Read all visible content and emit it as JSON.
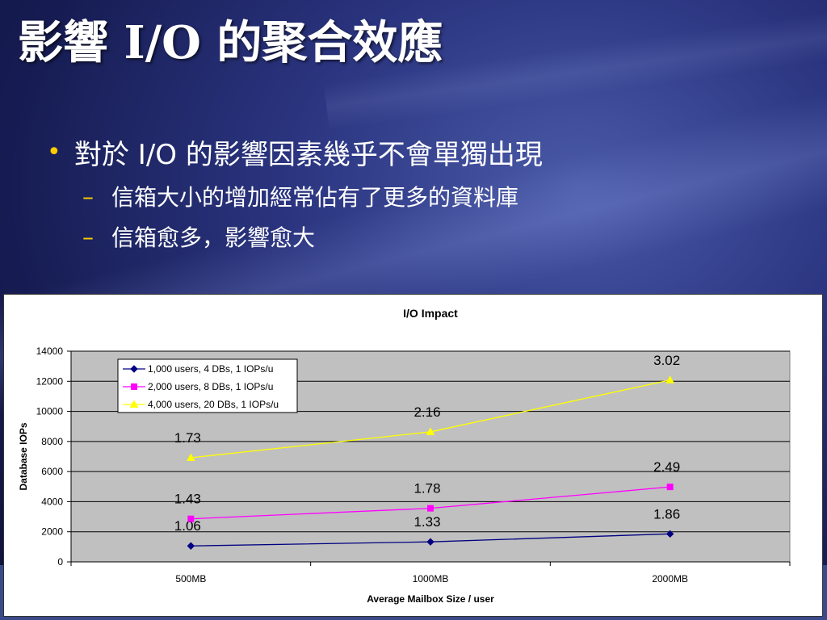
{
  "slide": {
    "title": "影響 I/O 的聚合效應",
    "bullet": "對於 I/O 的影響因素幾乎不會單獨出現",
    "sub_bullets": [
      "信箱大小的增加經常佔有了更多的資料庫",
      "信箱愈多，影響愈大"
    ],
    "bullet_symbol": "•",
    "sub_bullet_symbol": "–"
  },
  "chart_data": {
    "type": "line",
    "title": "I/O Impact",
    "xlabel": "Average Mailbox Size / user",
    "ylabel": "Database IOPs",
    "categories": [
      "500MB",
      "1000MB",
      "2000MB"
    ],
    "ylim": [
      0,
      14000
    ],
    "yticks": [
      "0",
      "2000",
      "4000",
      "6000",
      "8000",
      "10000",
      "12000",
      "14000"
    ],
    "grid": true,
    "legend_position": "top-left",
    "plot_background": "#c0c0c0",
    "series": [
      {
        "name": "1,000 users, 4 DBs, 1 IOPs/u",
        "color": "#000080",
        "marker": "diamond",
        "values": [
          1060,
          1330,
          1860
        ],
        "labels": [
          "1.06",
          "1.33",
          "1.86"
        ]
      },
      {
        "name": "2,000 users, 8 DBs, 1 IOPs/u",
        "color": "#ff00ff",
        "marker": "square",
        "values": [
          2860,
          3560,
          4980
        ],
        "labels": [
          "1.43",
          "1.78",
          "2.49"
        ]
      },
      {
        "name": "4,000 users, 20 DBs, 1 IOPs/u",
        "color": "#ffff00",
        "marker": "triangle",
        "values": [
          6920,
          8640,
          12080
        ],
        "labels": [
          "1.73",
          "2.16",
          "3.02"
        ]
      }
    ]
  }
}
